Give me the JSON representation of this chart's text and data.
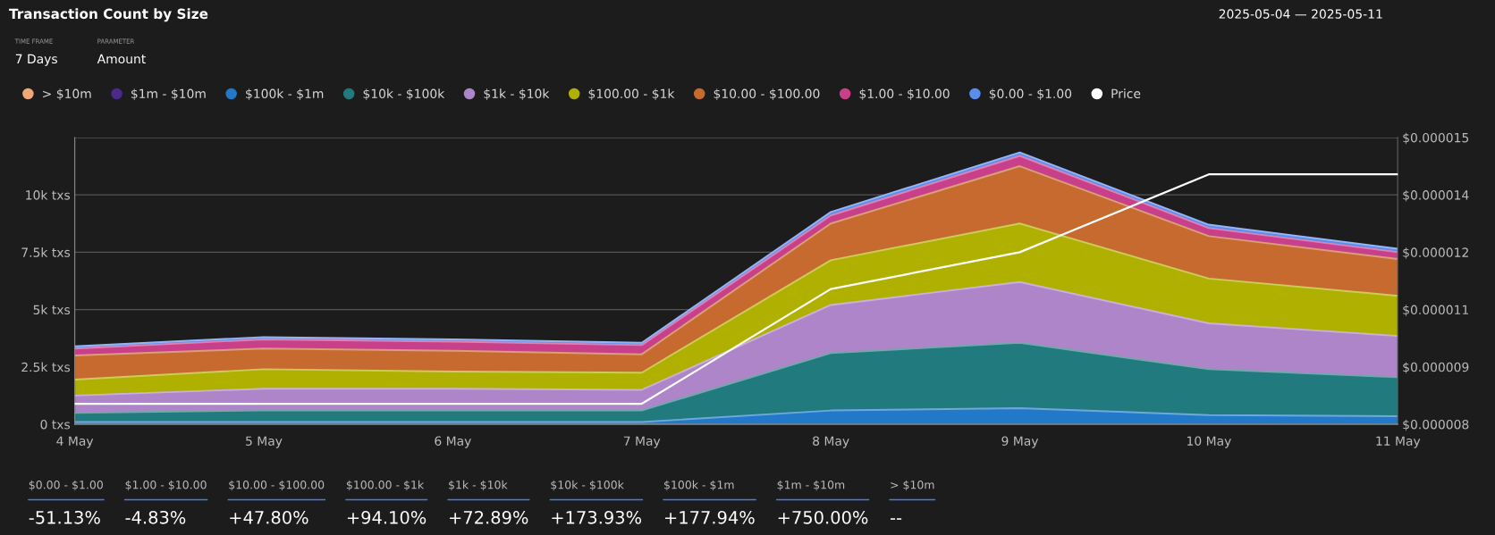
{
  "chart_data": {
    "type": "area",
    "title": "Transaction Count by Size",
    "stacked": true,
    "categories": [
      "4 May",
      "5 May",
      "6 May",
      "7 May",
      "8 May",
      "9 May",
      "10 May",
      "11 May"
    ],
    "series": [
      {
        "name": "> $10m",
        "color": "#f0a878",
        "values": [
          null,
          null,
          null,
          null,
          null,
          null,
          null,
          null
        ]
      },
      {
        "name": "$1m - $10m",
        "color": "#4b2a8c",
        "values": [
          null,
          null,
          null,
          null,
          null,
          null,
          null,
          null
        ]
      },
      {
        "name": "$100k - $1m",
        "color": "#2279c9",
        "values": [
          100,
          100,
          100,
          100,
          600,
          700,
          400,
          350
        ]
      },
      {
        "name": "$10k - $100k",
        "color": "#217a7d",
        "values": [
          400,
          500,
          500,
          500,
          2500,
          2850,
          2000,
          1700
        ]
      },
      {
        "name": "$1k - $10k",
        "color": "#ad85c8",
        "values": [
          750,
          950,
          950,
          900,
          2100,
          2650,
          2000,
          1800
        ]
      },
      {
        "name": "$100.00 - $1k",
        "color": "#b0b000",
        "values": [
          700,
          850,
          750,
          750,
          1950,
          2550,
          1950,
          1750
        ]
      },
      {
        "name": "$10.00 - $100.00",
        "color": "#c66a30",
        "values": [
          1050,
          900,
          900,
          800,
          1600,
          2500,
          1850,
          1600
        ]
      },
      {
        "name": "$1.00 - $10.00",
        "color": "#c9408a",
        "values": [
          300,
          400,
          400,
          400,
          350,
          450,
          350,
          300
        ]
      },
      {
        "name": "$0.00 - $1.00",
        "color": "#5b8def",
        "values": [
          100,
          100,
          100,
          100,
          150,
          150,
          150,
          150
        ]
      },
      {
        "name": "Price",
        "type": "line",
        "axis": "y2",
        "color": "#ffffff",
        "values": [
          8.5e-06,
          8.5e-06,
          8.5e-06,
          8.5e-06,
          1.13e-05,
          1.22e-05,
          1.41e-05,
          1.41e-05
        ]
      }
    ],
    "ylim": [
      0,
      12500
    ],
    "yticks": [
      {
        "value": 0,
        "label": "0 txs"
      },
      {
        "value": 2500,
        "label": "2.5k txs"
      },
      {
        "value": 5000,
        "label": "5k txs"
      },
      {
        "value": 7500,
        "label": "7.5k txs"
      },
      {
        "value": 10000,
        "label": "10k txs"
      },
      {
        "value": 12500,
        "label": null
      }
    ],
    "y2lim": [
      8e-06,
      1.5e-05
    ],
    "y2ticks": [
      {
        "value": 8e-06,
        "label": "$0.000008"
      },
      {
        "value": 9.4e-06,
        "label": "$0.000009"
      },
      {
        "value": 1.08e-05,
        "label": "$0.000011"
      },
      {
        "value": 1.22e-05,
        "label": "$0.000012"
      },
      {
        "value": 1.36e-05,
        "label": "$0.000014"
      },
      {
        "value": 1.5e-05,
        "label": "$0.000015"
      }
    ],
    "grid": "y",
    "legend": "top left",
    "marker": "none",
    "annotations": [
      "2025-05-04 — 2025-05-11",
      "TIME FRAME",
      "7 Days",
      "PARAMETER",
      "Amount",
      "$0.00 - $1.00",
      "-51.13%",
      "$1.00 - $10.00",
      "-4.83%",
      "$10.00 - $100.00",
      "+47.80%",
      "$100.00 - $1k",
      "+94.10%",
      "$1k - $10k",
      "+72.89%",
      "$10k - $100k",
      "+173.93%",
      "$100k - $1m",
      "+177.94%",
      "$1m - $10m",
      "+750.00%",
      "> $10m",
      "--"
    ]
  }
}
